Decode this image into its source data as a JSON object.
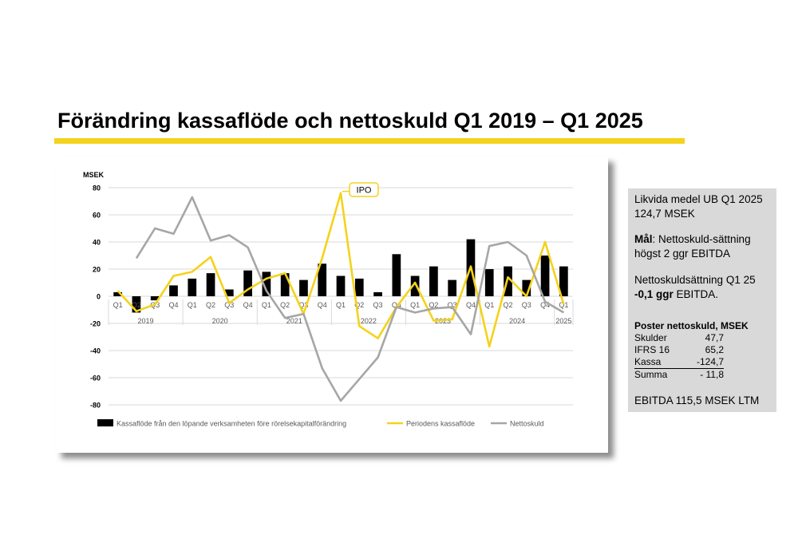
{
  "page": {
    "title": "Förändring kassaflöde och nettoskuld Q1 2019 – Q1 2025"
  },
  "side_panel": {
    "liquidity": "Likvida medel UB Q1 2025 124,7 MSEK",
    "goal_label": "Mål",
    "goal_text": ": Nettoskuld-sättning högst 2 ggr EBITDA",
    "ratio_prefix": "Nettoskuldsättning Q1 25",
    "ratio_bold": "-0,1 ggr",
    "ratio_suffix": " EBITDA.",
    "debt_title": "Poster nettoskuld, MSEK",
    "debt_rows": [
      {
        "label": "Skulder",
        "value": "47,7"
      },
      {
        "label": "IFRS 16",
        "value": "65,2"
      },
      {
        "label": "Kassa",
        "value": "-124,7"
      },
      {
        "label": "Summa",
        "value": "-  11,8"
      }
    ],
    "ebitda": "EBITDA 115,5 MSEK LTM"
  },
  "colors": {
    "accent_yellow": "#f5d21b",
    "bar_black": "#000000",
    "line_yellow": "#f5d21b",
    "line_gray": "#a6a6a6",
    "panel_gray": "#d9d9d9"
  },
  "chart_data": {
    "type": "bar",
    "ylabel": "MSEK",
    "ylim": [
      -80,
      80
    ],
    "yticks": [
      -80,
      -60,
      -40,
      -20,
      0,
      20,
      40,
      60,
      80
    ],
    "grid": true,
    "legend_position": "bottom",
    "categories": [
      "Q1",
      "Q2",
      "Q3",
      "Q4",
      "Q1",
      "Q2",
      "Q3",
      "Q4",
      "Q1",
      "Q2",
      "Q3",
      "Q4",
      "Q1",
      "Q2",
      "Q3",
      "Q4",
      "Q1",
      "Q2",
      "Q3",
      "Q4",
      "Q1",
      "Q2",
      "Q3",
      "Q4",
      "Q1"
    ],
    "years": [
      {
        "label": "2019",
        "start": 0,
        "count": 4
      },
      {
        "label": "2020",
        "start": 4,
        "count": 4
      },
      {
        "label": "2021",
        "start": 8,
        "count": 4
      },
      {
        "label": "2022",
        "start": 12,
        "count": 4
      },
      {
        "label": "2023",
        "start": 16,
        "count": 4
      },
      {
        "label": "2024",
        "start": 20,
        "count": 4
      },
      {
        "label": "2025",
        "start": 24,
        "count": 1
      }
    ],
    "series": [
      {
        "name": "Kassaflöde från den löpande verksamheten före rörelsekapitalförändring",
        "kind": "bar",
        "values": [
          3,
          -12,
          -3,
          8,
          13,
          17,
          5,
          19,
          18,
          17,
          12,
          24,
          15,
          13,
          3,
          31,
          15,
          22,
          12,
          42,
          20,
          22,
          12,
          30,
          22
        ]
      },
      {
        "name": "Periodens kassaflöde",
        "kind": "line",
        "values": [
          4,
          -11,
          -6,
          15,
          18,
          29,
          -5,
          5,
          13,
          17,
          -13,
          28,
          76,
          -22,
          -31,
          -8,
          10,
          -18,
          -17,
          22,
          -37,
          14,
          0,
          40,
          -6
        ]
      },
      {
        "name": "Nettoskuld",
        "kind": "line",
        "values": [
          null,
          28,
          50,
          46,
          73,
          41,
          45,
          36,
          4,
          -16,
          -13,
          -53,
          -77,
          -61,
          -45,
          -8,
          -12,
          -9,
          -8,
          -28,
          37,
          40,
          30,
          -4,
          -12
        ]
      }
    ],
    "annotations": [
      {
        "text": "IPO",
        "index": 12
      }
    ]
  }
}
